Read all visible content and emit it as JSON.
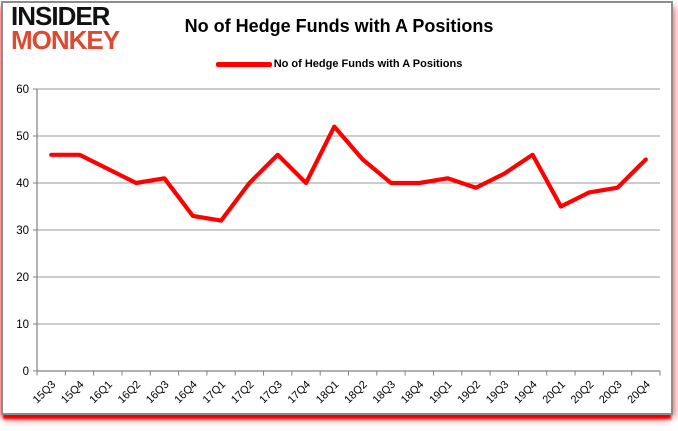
{
  "brand": {
    "line1": "INSIDER",
    "line2": "MONKEY"
  },
  "title": "No of Hedge Funds with A Positions",
  "legend": {
    "label": "No of Hedge Funds with A Positions"
  },
  "colors": {
    "series_line": "#FF0000",
    "brand_black": "#111111",
    "brand_red": "#DD4A2F",
    "grid": "#9a9a9a",
    "axis": "#808080",
    "frame": "#8c8c8c",
    "text": "#000000"
  },
  "chart_data": {
    "type": "line",
    "title": "No of Hedge Funds with A Positions",
    "categories": [
      "15Q3",
      "15Q4",
      "16Q1",
      "16Q2",
      "16Q3",
      "16Q4",
      "17Q1",
      "17Q2",
      "17Q3",
      "17Q4",
      "18Q1",
      "18Q2",
      "18Q3",
      "18Q4",
      "19Q1",
      "19Q2",
      "19Q3",
      "19Q4",
      "20Q1",
      "20Q2",
      "20Q3",
      "20Q4"
    ],
    "series": [
      {
        "name": "No of Hedge Funds with A Positions",
        "color": "#FF0000",
        "values": [
          46,
          46,
          43,
          40,
          41,
          33,
          32,
          40,
          46,
          40,
          52,
          45,
          40,
          40,
          41,
          39,
          42,
          46,
          35,
          38,
          39,
          45
        ]
      }
    ],
    "xlabel": "",
    "ylabel": "",
    "ylim": [
      0,
      60
    ],
    "ytick_step": 10,
    "yticks": [
      0,
      10,
      20,
      30,
      40,
      50,
      60
    ],
    "grid": true,
    "legend_position": "top"
  }
}
